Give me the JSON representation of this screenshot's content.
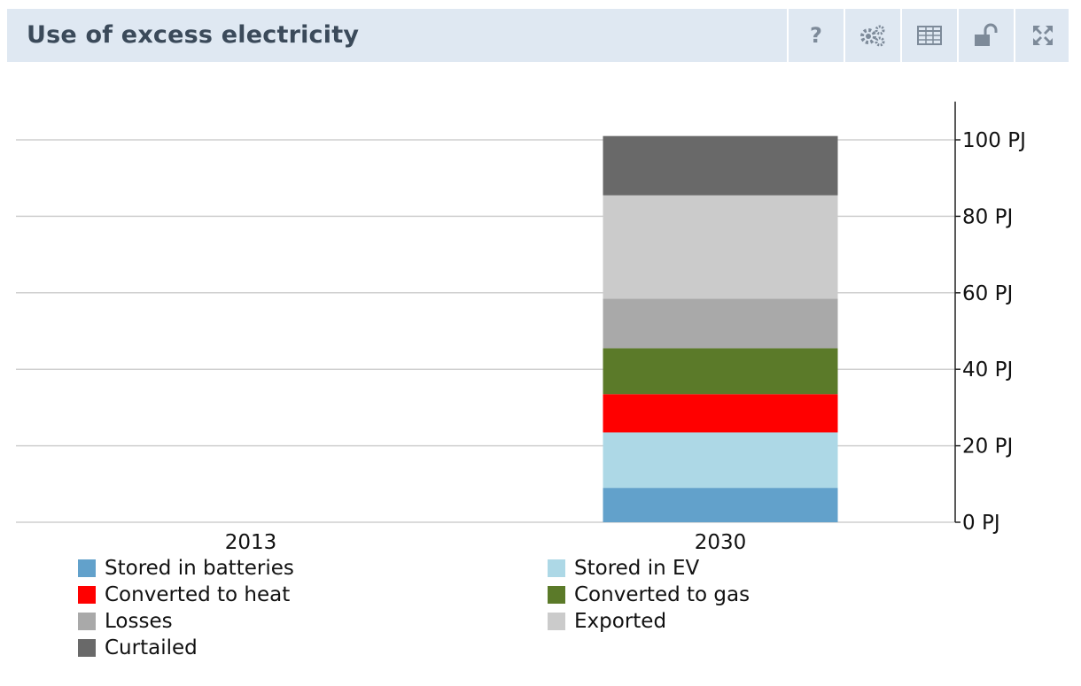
{
  "header": {
    "title": "Use of excess electricity",
    "tools": [
      {
        "icon": "help-icon",
        "label": "?"
      },
      {
        "icon": "settings-gears-icon"
      },
      {
        "icon": "table-icon"
      },
      {
        "icon": "unlock-icon"
      },
      {
        "icon": "fullscreen-icon"
      }
    ]
  },
  "chart_data": {
    "type": "bar",
    "stacked": true,
    "categories": [
      "2013",
      "2030"
    ],
    "y_unit": "PJ",
    "ylim": [
      0,
      110
    ],
    "y_ticks": [
      0,
      20,
      40,
      60,
      80,
      100
    ],
    "y_tick_labels": [
      "0 PJ",
      "20 PJ",
      "40 PJ",
      "60 PJ",
      "80 PJ",
      "100 PJ"
    ],
    "grid": true,
    "legend_position": "bottom",
    "series": [
      {
        "name": "Stored in batteries",
        "color": "#62a1cb",
        "values": [
          0,
          9
        ]
      },
      {
        "name": "Stored in EV",
        "color": "#add8e6",
        "values": [
          0,
          14.5
        ]
      },
      {
        "name": "Converted to heat",
        "color": "#ff0000",
        "values": [
          0,
          10
        ]
      },
      {
        "name": "Converted to gas",
        "color": "#5b7a29",
        "values": [
          0,
          12
        ]
      },
      {
        "name": "Losses",
        "color": "#a9a9a9",
        "values": [
          0,
          13
        ]
      },
      {
        "name": "Exported",
        "color": "#cbcbcb",
        "values": [
          0,
          27
        ]
      },
      {
        "name": "Curtailed",
        "color": "#696969",
        "values": [
          0,
          15.5
        ]
      }
    ]
  }
}
